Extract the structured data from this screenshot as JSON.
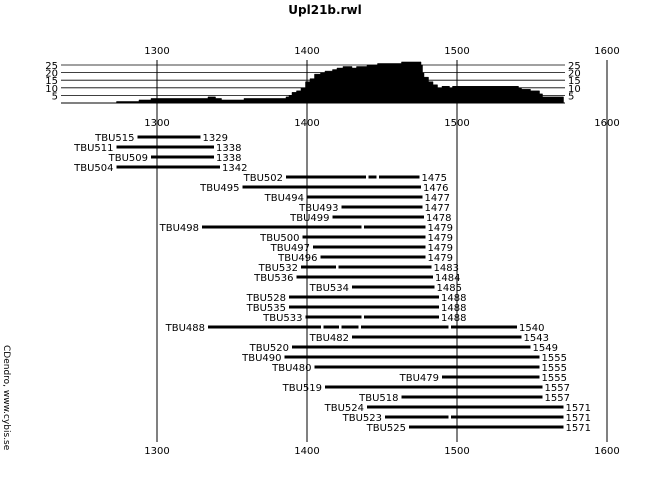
{
  "chart_data": {
    "type": "bar",
    "title": "Upl21b.rwl",
    "credit": "CDendro, www.cybis.se",
    "x_ticks": [
      1300,
      1400,
      1500,
      1600
    ],
    "xlim": [
      1270,
      1600
    ],
    "depth_plot": {
      "type": "area",
      "yticks": [
        5,
        10,
        15,
        20,
        25
      ],
      "ylim": [
        0,
        25
      ],
      "points": [
        [
          1273,
          1
        ],
        [
          1287,
          1
        ],
        [
          1288,
          2
        ],
        [
          1295,
          2
        ],
        [
          1296,
          3
        ],
        [
          1333,
          3
        ],
        [
          1334,
          4
        ],
        [
          1338,
          4
        ],
        [
          1339,
          3
        ],
        [
          1342,
          3
        ],
        [
          1343,
          2
        ],
        [
          1357,
          2
        ],
        [
          1358,
          3
        ],
        [
          1385,
          3
        ],
        [
          1386,
          4
        ],
        [
          1388,
          5
        ],
        [
          1390,
          7
        ],
        [
          1393,
          8
        ],
        [
          1396,
          10
        ],
        [
          1399,
          14
        ],
        [
          1402,
          16
        ],
        [
          1405,
          19
        ],
        [
          1409,
          20
        ],
        [
          1412,
          21
        ],
        [
          1417,
          22
        ],
        [
          1420,
          23
        ],
        [
          1424,
          24
        ],
        [
          1430,
          23
        ],
        [
          1433,
          24
        ],
        [
          1440,
          25
        ],
        [
          1447,
          26
        ],
        [
          1458,
          26
        ],
        [
          1463,
          27
        ],
        [
          1471,
          27
        ],
        [
          1476,
          25
        ],
        [
          1477,
          20
        ],
        [
          1478,
          17
        ],
        [
          1481,
          14
        ],
        [
          1484,
          12
        ],
        [
          1487,
          10
        ],
        [
          1490,
          11
        ],
        [
          1495,
          10
        ],
        [
          1497,
          11
        ],
        [
          1540,
          11
        ],
        [
          1541,
          10
        ],
        [
          1543,
          9
        ],
        [
          1549,
          8
        ],
        [
          1555,
          6
        ],
        [
          1557,
          4
        ],
        [
          1571,
          4
        ]
      ]
    },
    "series": [
      {
        "name": "TBU515",
        "start": 1287,
        "end": 1329,
        "end_label": "1329",
        "gaps": []
      },
      {
        "name": "TBU511",
        "start": 1273,
        "end": 1338,
        "end_label": "1338",
        "gaps": []
      },
      {
        "name": "TBU509",
        "start": 1296,
        "end": 1338,
        "end_label": "1338",
        "gaps": []
      },
      {
        "name": "TBU504",
        "start": 1273,
        "end": 1342,
        "end_label": "1342",
        "gaps": []
      },
      {
        "name": "TBU502",
        "start": 1386,
        "end": 1475,
        "end_label": "1475",
        "gaps": [
          1440,
          1447
        ]
      },
      {
        "name": "TBU495",
        "start": 1357,
        "end": 1476,
        "end_label": "1476",
        "gaps": []
      },
      {
        "name": "TBU494",
        "start": 1400,
        "end": 1477,
        "end_label": "1477",
        "gaps": []
      },
      {
        "name": "TBU493",
        "start": 1423,
        "end": 1477,
        "end_label": "1477",
        "gaps": []
      },
      {
        "name": "TBU499",
        "start": 1417,
        "end": 1478,
        "end_label": "1478",
        "gaps": []
      },
      {
        "name": "TBU498",
        "start": 1330,
        "end": 1479,
        "end_label": "1479",
        "gaps": [
          1437
        ]
      },
      {
        "name": "TBU500",
        "start": 1397,
        "end": 1479,
        "end_label": "1479",
        "gaps": []
      },
      {
        "name": "TBU497",
        "start": 1404,
        "end": 1479,
        "end_label": "1479",
        "gaps": []
      },
      {
        "name": "TBU496",
        "start": 1409,
        "end": 1479,
        "end_label": "1479",
        "gaps": []
      },
      {
        "name": "TBU532",
        "start": 1396,
        "end": 1483,
        "end_label": "1483",
        "gaps": [
          1420
        ]
      },
      {
        "name": "TBU536",
        "start": 1393,
        "end": 1484,
        "end_label": "1484",
        "gaps": []
      },
      {
        "name": "TBU534",
        "start": 1430,
        "end": 1485,
        "end_label": "1485",
        "gaps": []
      },
      {
        "name": "TBU528",
        "start": 1388,
        "end": 1488,
        "end_label": "1488",
        "gaps": []
      },
      {
        "name": "TBU535",
        "start": 1388,
        "end": 1488,
        "end_label": "1488",
        "gaps": []
      },
      {
        "name": "TBU533",
        "start": 1399,
        "end": 1488,
        "end_label": "1488",
        "gaps": [
          1437
        ]
      },
      {
        "name": "TBU488",
        "start": 1334,
        "end": 1540,
        "end_label": "1540",
        "gaps": [
          1410,
          1422,
          1435,
          1495
        ]
      },
      {
        "name": "TBU482",
        "start": 1430,
        "end": 1543,
        "end_label": "1543",
        "gaps": []
      },
      {
        "name": "TBU520",
        "start": 1390,
        "end": 1549,
        "end_label": "1549",
        "gaps": []
      },
      {
        "name": "TBU490",
        "start": 1385,
        "end": 1555,
        "end_label": "1555",
        "gaps": []
      },
      {
        "name": "TBU480",
        "start": 1405,
        "end": 1555,
        "end_label": "1555",
        "gaps": []
      },
      {
        "name": "TBU479",
        "start": 1490,
        "end": 1555,
        "end_label": "1555",
        "gaps": []
      },
      {
        "name": "TBU519",
        "start": 1412,
        "end": 1557,
        "end_label": "1557",
        "gaps": []
      },
      {
        "name": "TBU518",
        "start": 1463,
        "end": 1557,
        "end_label": "1557",
        "gaps": []
      },
      {
        "name": "TBU524",
        "start": 1440,
        "end": 1571,
        "end_label": "1571",
        "gaps": []
      },
      {
        "name": "TBU523",
        "start": 1452,
        "end": 1571,
        "end_label": "1571",
        "gaps": [
          1495
        ]
      },
      {
        "name": "TBU525",
        "start": 1468,
        "end": 1571,
        "end_label": "1571",
        "gaps": []
      }
    ]
  }
}
